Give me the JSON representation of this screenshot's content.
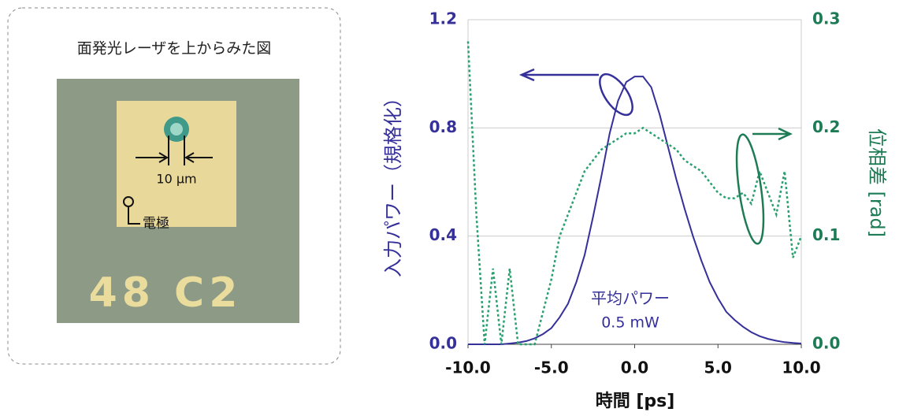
{
  "inset": {
    "caption": "面発光レーザを上からみた図",
    "scale_label": "10 µm",
    "electrode_label": "電極",
    "chip_marking": "48 C2"
  },
  "chart_data": {
    "type": "line",
    "x": [
      -10,
      -9.5,
      -9,
      -8.5,
      -8,
      -7.5,
      -7,
      -6.5,
      -6,
      -5.5,
      -5,
      -4.5,
      -4,
      -3.5,
      -3,
      -2.5,
      -2,
      -1.5,
      -1,
      -0.5,
      0,
      0.5,
      1,
      1.5,
      2,
      2.5,
      3,
      3.5,
      4,
      4.5,
      5,
      5.5,
      6,
      6.5,
      7,
      7.5,
      8,
      8.5,
      9,
      9.5,
      10
    ],
    "series": [
      {
        "color": "#35309a",
        "style": "solid",
        "values": [
          0,
          0,
          0,
          0,
          0,
          0.003,
          0.006,
          0.012,
          0.022,
          0.038,
          0.06,
          0.1,
          0.15,
          0.23,
          0.33,
          0.47,
          0.62,
          0.78,
          0.9,
          0.97,
          0.99,
          0.99,
          0.95,
          0.85,
          0.73,
          0.61,
          0.5,
          0.4,
          0.31,
          0.23,
          0.17,
          0.12,
          0.09,
          0.065,
          0.045,
          0.03,
          0.02,
          0.013,
          0.008,
          0.005,
          0.003
        ]
      },
      {
        "color": "#2aa070",
        "style": "dotted",
        "axis": "y2",
        "values": [
          0.28,
          0.12,
          0,
          0.07,
          0,
          0.07,
          0,
          0,
          0,
          0.03,
          0.06,
          0.1,
          0.12,
          0.14,
          0.16,
          0.17,
          0.18,
          0.185,
          0.19,
          0.195,
          0.195,
          0.2,
          0.195,
          0.19,
          0.185,
          0.18,
          0.17,
          0.165,
          0.16,
          0.15,
          0.14,
          0.135,
          0.135,
          0.14,
          0.13,
          0.16,
          0.14,
          0.12,
          0.16,
          0.08,
          0.1
        ]
      }
    ],
    "xlim": [
      -10,
      10
    ],
    "xticks": [
      {
        "value": -10,
        "label": "-10.0"
      },
      {
        "value": -5,
        "label": "-5.0"
      },
      {
        "value": 0,
        "label": "0.0"
      },
      {
        "value": 5,
        "label": "5.0"
      },
      {
        "value": 10,
        "label": "10.0"
      }
    ],
    "ylim": [
      0,
      1.2
    ],
    "yticks": [
      {
        "value": 0,
        "label": "0.0"
      },
      0.4,
      0.8,
      1.2
    ],
    "y2lim": [
      0,
      0.3
    ],
    "y2ticks": [
      {
        "value": 0,
        "label": "0.0"
      },
      0.1,
      0.2,
      0.3
    ],
    "grid": true,
    "x_label": "時間 [ps]",
    "y_label": "入力パワー（規格化）",
    "y2_label": "位相差 [rad]",
    "annotations": [
      "平均パワー",
      "0.5 mW"
    ]
  }
}
